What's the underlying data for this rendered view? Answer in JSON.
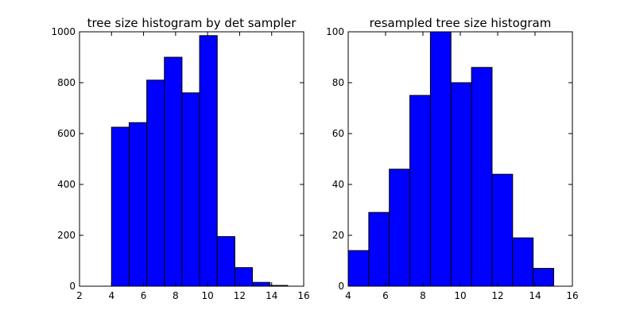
{
  "chart_data": [
    {
      "type": "bar",
      "title": "tree size histogram by det sampler",
      "xlabel": "",
      "ylabel": "",
      "xlim": [
        2,
        16
      ],
      "ylim": [
        0,
        1000
      ],
      "xticks": [
        2,
        4,
        6,
        8,
        10,
        12,
        14,
        16
      ],
      "yticks": [
        0,
        200,
        400,
        600,
        800,
        1000
      ],
      "bin_edges": [
        4.0,
        5.1,
        6.2,
        7.3,
        8.4,
        9.5,
        10.6,
        11.7,
        12.8,
        13.9,
        15.0
      ],
      "values": [
        625,
        643,
        810,
        900,
        760,
        985,
        195,
        73,
        15,
        3
      ],
      "bar_color": "#0000ff",
      "grid": false
    },
    {
      "type": "bar",
      "title": "resampled tree size histogram",
      "xlabel": "",
      "ylabel": "",
      "xlim": [
        4,
        16
      ],
      "ylim": [
        0,
        100
      ],
      "xticks": [
        4,
        6,
        8,
        10,
        12,
        14,
        16
      ],
      "yticks": [
        0,
        20,
        40,
        60,
        80,
        100
      ],
      "bin_edges": [
        4.0,
        5.1,
        6.2,
        7.3,
        8.4,
        9.5,
        10.6,
        11.7,
        12.8,
        13.9,
        15.0
      ],
      "values": [
        14,
        29,
        46,
        75,
        100,
        80,
        86,
        44,
        19,
        7
      ],
      "bar_color": "#0000ff",
      "grid": false
    }
  ]
}
